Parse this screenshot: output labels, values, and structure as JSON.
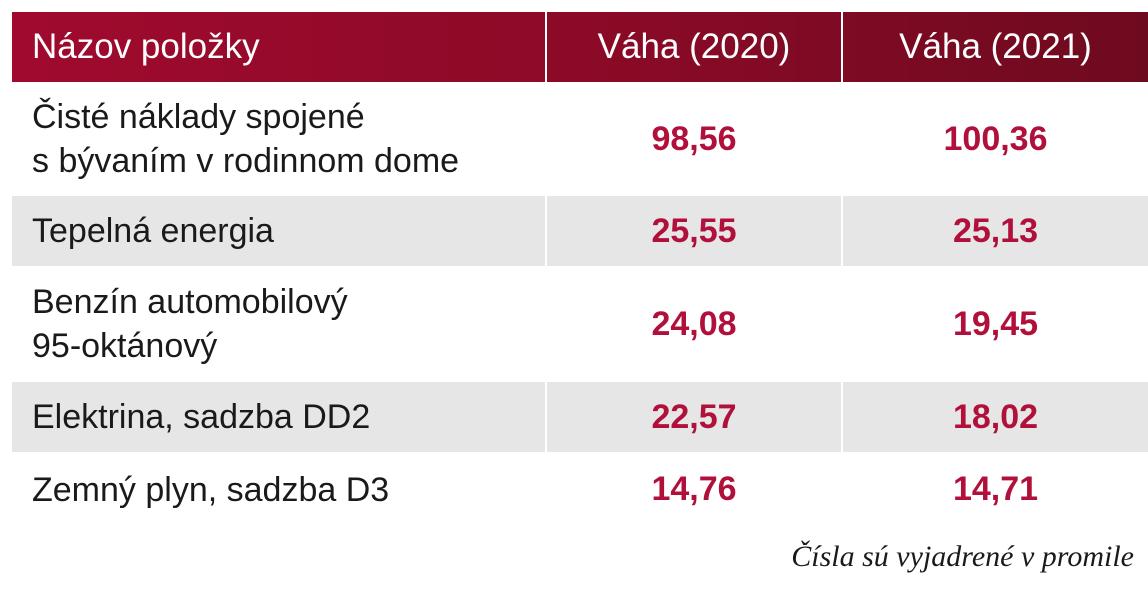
{
  "table": {
    "headers": {
      "name": "Názov položky",
      "col2020": "Váha (2020)",
      "col2021": "Váha (2021)"
    },
    "rows": [
      {
        "name_line1": "Čisté náklady spojené",
        "name_line2": "s bývaním v rodinnom dome",
        "v2020": "98,56",
        "v2021": "100,36"
      },
      {
        "name_line1": "Tepelná energia",
        "name_line2": "",
        "v2020": "25,55",
        "v2021": "25,13"
      },
      {
        "name_line1": "Benzín automobilový",
        "name_line2": "95-oktánový",
        "v2020": "24,08",
        "v2021": "19,45"
      },
      {
        "name_line1": "Elektrina, sadzba DD2",
        "name_line2": "",
        "v2020": "22,57",
        "v2021": "18,02"
      },
      {
        "name_line1": "Zemný plyn, sadzba D3",
        "name_line2": "",
        "v2020": "14,76",
        "v2021": "14,71"
      }
    ]
  },
  "footnote": "Čísla sú vyjadrené v promile"
}
